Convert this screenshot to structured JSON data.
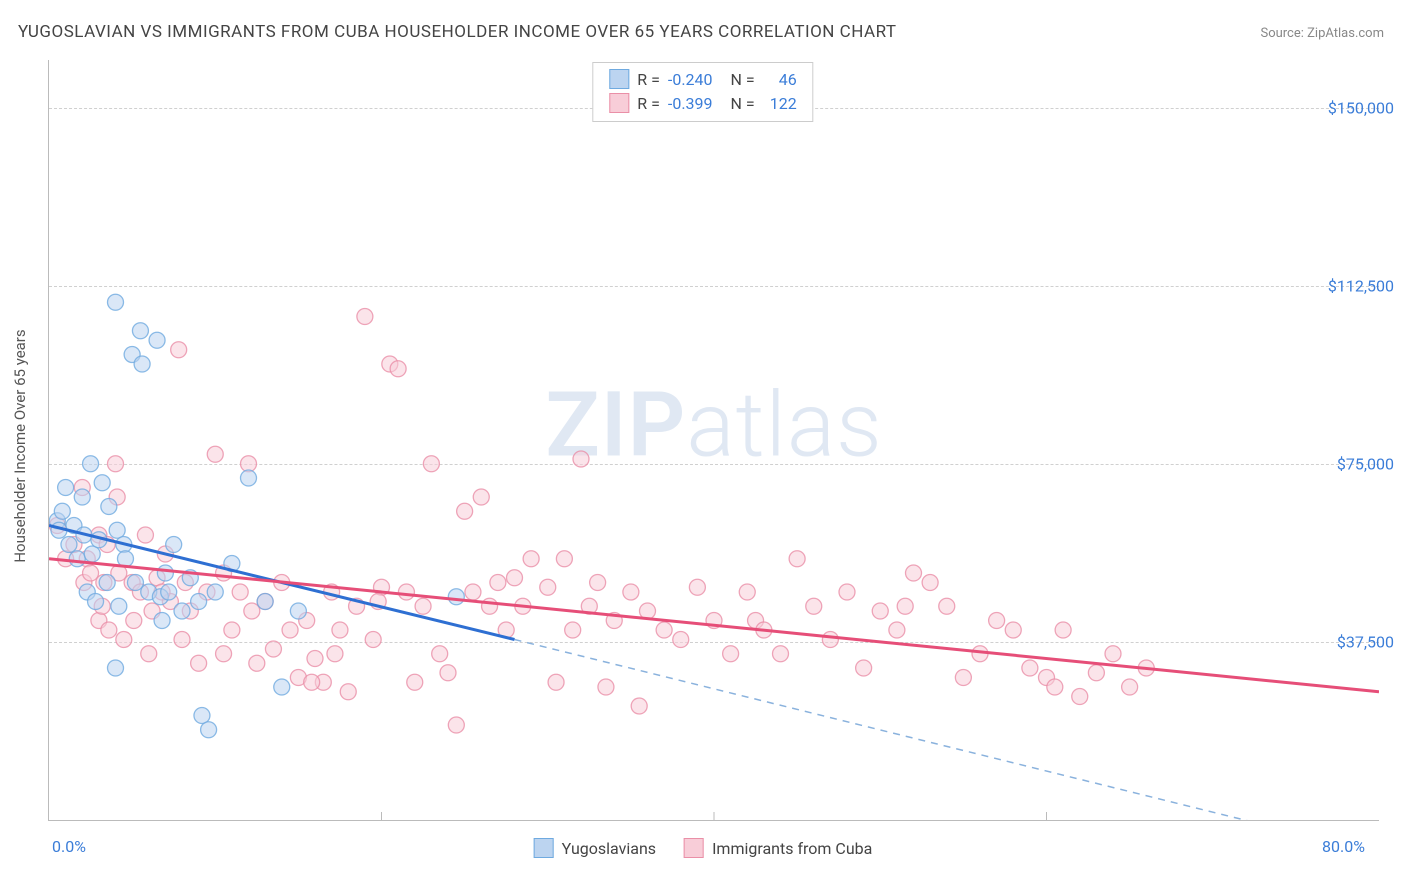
{
  "title": "YUGOSLAVIAN VS IMMIGRANTS FROM CUBA HOUSEHOLDER INCOME OVER 65 YEARS CORRELATION CHART",
  "source": "Source: ZipAtlas.com",
  "ylabel": "Householder Income Over 65 years",
  "watermark_left": "ZIP",
  "watermark_right": "atlas",
  "chart": {
    "type": "scatter",
    "xlim": [
      0,
      80
    ],
    "ylim": [
      0,
      160000
    ],
    "x_ticks": [
      {
        "pos": 0,
        "label": "0.0%"
      },
      {
        "pos": 80,
        "label": "80.0%"
      }
    ],
    "x_tick_minor": [
      20,
      40,
      60
    ],
    "y_ticks": [
      {
        "pos": 37500,
        "label": "$37,500"
      },
      {
        "pos": 75000,
        "label": "$75,000"
      },
      {
        "pos": 112500,
        "label": "$112,500"
      },
      {
        "pos": 150000,
        "label": "$150,000"
      }
    ],
    "grid_color": "#d0d0d0",
    "background_color": "#ffffff",
    "series": [
      {
        "name": "Yugoslavians",
        "marker_fill": "#bcd4f0",
        "marker_stroke": "#6faae0",
        "marker_radius": 8,
        "line_color": "#2e6fd2",
        "line_width": 3,
        "dash_color": "#8ab2dd",
        "R": "-0.240",
        "N": "46",
        "regression": {
          "x1": 0,
          "y1": 62000,
          "x2": 28,
          "y2": 38000,
          "x3": 80,
          "y3": -7000
        },
        "points": [
          [
            0.5,
            63000
          ],
          [
            0.6,
            61000
          ],
          [
            0.8,
            65000
          ],
          [
            1.0,
            70000
          ],
          [
            1.2,
            58000
          ],
          [
            1.5,
            62000
          ],
          [
            1.7,
            55000
          ],
          [
            2.0,
            68000
          ],
          [
            2.1,
            60000
          ],
          [
            2.3,
            48000
          ],
          [
            2.5,
            75000
          ],
          [
            2.6,
            56000
          ],
          [
            2.8,
            46000
          ],
          [
            3.0,
            59000
          ],
          [
            3.2,
            71000
          ],
          [
            3.5,
            50000
          ],
          [
            3.6,
            66000
          ],
          [
            4.0,
            109000
          ],
          [
            4.1,
            61000
          ],
          [
            4.2,
            45000
          ],
          [
            4.5,
            58000
          ],
          [
            4.6,
            55000
          ],
          [
            5.0,
            98000
          ],
          [
            5.2,
            50000
          ],
          [
            5.5,
            103000
          ],
          [
            5.6,
            96000
          ],
          [
            6.0,
            48000
          ],
          [
            6.5,
            101000
          ],
          [
            6.8,
            42000
          ],
          [
            7.0,
            52000
          ],
          [
            7.5,
            58000
          ],
          [
            8.0,
            44000
          ],
          [
            8.5,
            51000
          ],
          [
            9.0,
            46000
          ],
          [
            9.2,
            22000
          ],
          [
            9.6,
            19000
          ],
          [
            10.0,
            48000
          ],
          [
            11.0,
            54000
          ],
          [
            12.0,
            72000
          ],
          [
            13.0,
            46000
          ],
          [
            14.0,
            28000
          ],
          [
            15.0,
            44000
          ],
          [
            4.0,
            32000
          ],
          [
            24.5,
            47000
          ],
          [
            6.7,
            47000
          ],
          [
            7.2,
            48000
          ]
        ]
      },
      {
        "name": "Immigrants from Cuba",
        "marker_fill": "#f8cdd8",
        "marker_stroke": "#ea8fa7",
        "marker_radius": 8,
        "line_color": "#e64e78",
        "line_width": 3,
        "R": "-0.399",
        "N": "122",
        "regression": {
          "x1": 0,
          "y1": 55000,
          "x2": 80,
          "y2": 27000
        },
        "points": [
          [
            0.5,
            62000
          ],
          [
            1.0,
            55000
          ],
          [
            1.5,
            58000
          ],
          [
            2.0,
            70000
          ],
          [
            2.1,
            50000
          ],
          [
            2.3,
            55000
          ],
          [
            2.5,
            52000
          ],
          [
            3.0,
            60000
          ],
          [
            3.0,
            42000
          ],
          [
            3.2,
            45000
          ],
          [
            3.3,
            50000
          ],
          [
            3.5,
            58000
          ],
          [
            3.6,
            40000
          ],
          [
            4.0,
            75000
          ],
          [
            4.1,
            68000
          ],
          [
            4.2,
            52000
          ],
          [
            4.5,
            38000
          ],
          [
            5.0,
            50000
          ],
          [
            5.1,
            42000
          ],
          [
            5.5,
            48000
          ],
          [
            5.8,
            60000
          ],
          [
            6.0,
            35000
          ],
          [
            6.2,
            44000
          ],
          [
            6.5,
            51000
          ],
          [
            7.0,
            56000
          ],
          [
            7.3,
            46000
          ],
          [
            7.8,
            99000
          ],
          [
            8.0,
            38000
          ],
          [
            8.2,
            50000
          ],
          [
            8.5,
            44000
          ],
          [
            9.0,
            33000
          ],
          [
            9.5,
            48000
          ],
          [
            10.0,
            77000
          ],
          [
            10.5,
            52000
          ],
          [
            11.0,
            40000
          ],
          [
            11.5,
            48000
          ],
          [
            12.0,
            75000
          ],
          [
            12.5,
            33000
          ],
          [
            13.0,
            46000
          ],
          [
            13.5,
            36000
          ],
          [
            14.0,
            50000
          ],
          [
            14.5,
            40000
          ],
          [
            15.0,
            30000
          ],
          [
            15.5,
            42000
          ],
          [
            16.0,
            34000
          ],
          [
            16.5,
            29000
          ],
          [
            17.0,
            48000
          ],
          [
            17.5,
            40000
          ],
          [
            18.0,
            27000
          ],
          [
            18.5,
            45000
          ],
          [
            19.0,
            106000
          ],
          [
            19.5,
            38000
          ],
          [
            20.0,
            49000
          ],
          [
            20.5,
            96000
          ],
          [
            21.0,
            95000
          ],
          [
            21.5,
            48000
          ],
          [
            22.0,
            29000
          ],
          [
            22.5,
            45000
          ],
          [
            23.0,
            75000
          ],
          [
            23.5,
            35000
          ],
          [
            24.0,
            31000
          ],
          [
            24.5,
            20000
          ],
          [
            25.0,
            65000
          ],
          [
            25.5,
            48000
          ],
          [
            26.0,
            68000
          ],
          [
            26.5,
            45000
          ],
          [
            27.0,
            50000
          ],
          [
            27.5,
            40000
          ],
          [
            28.0,
            51000
          ],
          [
            28.5,
            45000
          ],
          [
            29.0,
            55000
          ],
          [
            30.0,
            49000
          ],
          [
            30.5,
            29000
          ],
          [
            31.0,
            55000
          ],
          [
            31.5,
            40000
          ],
          [
            32.0,
            76000
          ],
          [
            32.5,
            45000
          ],
          [
            33.0,
            50000
          ],
          [
            33.5,
            28000
          ],
          [
            34.0,
            42000
          ],
          [
            35.0,
            48000
          ],
          [
            35.5,
            24000
          ],
          [
            36.0,
            44000
          ],
          [
            37.0,
            40000
          ],
          [
            38.0,
            38000
          ],
          [
            39.0,
            49000
          ],
          [
            40.0,
            42000
          ],
          [
            41.0,
            35000
          ],
          [
            42.0,
            48000
          ],
          [
            42.5,
            42000
          ],
          [
            43.0,
            40000
          ],
          [
            44.0,
            35000
          ],
          [
            45.0,
            55000
          ],
          [
            46.0,
            45000
          ],
          [
            47.0,
            38000
          ],
          [
            48.0,
            48000
          ],
          [
            49.0,
            32000
          ],
          [
            50.0,
            44000
          ],
          [
            51.0,
            40000
          ],
          [
            51.5,
            45000
          ],
          [
            52.0,
            52000
          ],
          [
            53.0,
            50000
          ],
          [
            54.0,
            45000
          ],
          [
            55.0,
            30000
          ],
          [
            56.0,
            35000
          ],
          [
            57.0,
            42000
          ],
          [
            58.0,
            40000
          ],
          [
            59.0,
            32000
          ],
          [
            60.0,
            30000
          ],
          [
            60.5,
            28000
          ],
          [
            61.0,
            40000
          ],
          [
            62.0,
            26000
          ],
          [
            63.0,
            31000
          ],
          [
            64.0,
            35000
          ],
          [
            65.0,
            28000
          ],
          [
            66.0,
            32000
          ],
          [
            10.5,
            35000
          ],
          [
            12.2,
            44000
          ],
          [
            15.8,
            29000
          ],
          [
            17.2,
            35000
          ],
          [
            19.8,
            46000
          ],
          [
            6.8,
            48000
          ]
        ]
      }
    ]
  }
}
